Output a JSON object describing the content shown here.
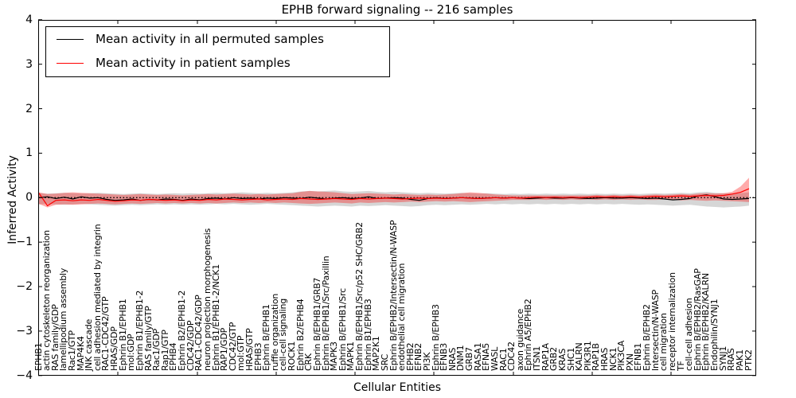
{
  "chart_data": {
    "type": "line",
    "title": "EPHB forward signaling -- 216 samples",
    "xlabel": "Cellular Entities",
    "ylabel": "Inferred Activity",
    "ylim": [
      -4,
      4
    ],
    "ytick_values": [
      4,
      3,
      2,
      1,
      0,
      -1,
      -2,
      -3,
      -4
    ],
    "ytick_labels": [
      "4",
      "3",
      "2",
      "1",
      "0",
      "−1",
      "−2",
      "−3",
      "−4"
    ],
    "grid": false,
    "legend_position": "upper left",
    "zero_line": {
      "y": 0,
      "style": "dotted",
      "color": "#000000"
    },
    "categories": [
      "EPHB1",
      "actin cytoskeleton reorganization",
      "RAS family/GDP",
      "lamellipodium assembly",
      "Rac1/GTP",
      "MAP4K4",
      "JNK cascade",
      "cell adhesion mediated by integrin",
      "RAC1-CDC42/GTP",
      "HRAS/GDP",
      "Ephrin B1/EPHB1",
      "mol:GDP",
      "Ephrin B1/EPHB1-2",
      "RAS family/GTP",
      "Rac1/GDP",
      "Rap1/GTP",
      "EPHB4",
      "Ephrin B2/EPHB1-2",
      "CDC42/GDP",
      "RAC1-CDC42/GDP",
      "neuron projection morphogenesis",
      "Ephrin B1/EPHB1-2/NCK1",
      "RAP1/GDP",
      "CDC42/GTP",
      "mol:GTP",
      "HRAS/GTP",
      "EPHB3",
      "Ephrin B/EPHB1",
      "ruffle organization",
      "cell-cell signaling",
      "ROCK1",
      "Ephrin B2/EPHB4",
      "CRK",
      "Ephrin B/EPHB1/GRB7",
      "Ephrin B/EPHB1/Src/Paxillin",
      "MAPK3",
      "Ephrin B/EPHB1/Src",
      "MAPK1",
      "Ephrin B/EPHB1/Src/p52 SHC/GRB2",
      "Ephrin B1/EPHB3",
      "MAP2K1",
      "SRC",
      "Ephrin B/EPHB2/Intersectin/N-WASP",
      "endothelial cell migration",
      "EPHB2",
      "EFNB2",
      "PI3K",
      "Ephrin B/EPHB3",
      "EFNB3",
      "NRAS",
      "DNM1",
      "GRB7",
      "RASA1",
      "EFNA5",
      "WASL",
      "RAC1",
      "CDC42",
      "axon guidance",
      "Ephrin A5/EPHB2",
      "ITSN1",
      "RAP1A",
      "GRB2",
      "KRAS",
      "SHC1",
      "KALRN",
      "PIK3R1",
      "RAP1B",
      "HRAS",
      "NCK1",
      "PIK3CA",
      "PXN",
      "EFNB1",
      "Ephrin B/EPHB2",
      "Intersectin/N-WASP",
      "cell migration",
      "receptor internalization",
      "TF",
      "cell-cell adhesion",
      "Ephrin B/EPHB2/RasGAP",
      "Ephrin B/EPHB2/KALRN",
      "Endophilin/SYNJ1",
      "SYNJ1",
      "RRAS",
      "PAK1",
      "PTK2"
    ],
    "series": [
      {
        "name": "Mean activity in all permuted samples",
        "color": "#000000",
        "band_color": "rgba(0,0,0,0.16)",
        "values": [
          0.0,
          0.02,
          -0.02,
          0.01,
          -0.03,
          0.02,
          -0.01,
          0.0,
          -0.04,
          -0.06,
          -0.05,
          -0.03,
          -0.06,
          -0.04,
          -0.05,
          -0.03,
          -0.04,
          -0.06,
          -0.03,
          -0.05,
          -0.02,
          -0.01,
          -0.03,
          0.0,
          -0.02,
          -0.01,
          -0.03,
          -0.01,
          -0.02,
          0.0,
          -0.01,
          -0.02,
          0.01,
          -0.01,
          -0.03,
          -0.01,
          0.0,
          -0.02,
          -0.01,
          0.02,
          -0.02,
          -0.01,
          0.0,
          -0.01,
          -0.04,
          -0.06,
          -0.02,
          0.0,
          -0.02,
          -0.01,
          0.0,
          -0.01,
          -0.02,
          -0.01,
          0.0,
          -0.01,
          0.0,
          -0.01,
          -0.02,
          -0.01,
          0.0,
          -0.01,
          -0.01,
          0.0,
          -0.01,
          -0.02,
          -0.01,
          0.0,
          -0.01,
          -0.01,
          0.0,
          -0.01,
          -0.02,
          -0.01,
          -0.03,
          -0.05,
          -0.04,
          -0.02,
          0.04,
          0.06,
          0.02,
          -0.03,
          -0.04,
          -0.03,
          -0.02
        ],
        "band_upper": [
          0.1,
          0.09,
          0.1,
          0.11,
          0.1,
          0.09,
          0.1,
          0.11,
          0.1,
          0.09,
          0.08,
          0.09,
          0.1,
          0.09,
          0.08,
          0.09,
          0.1,
          0.09,
          0.1,
          0.09,
          0.1,
          0.11,
          0.1,
          0.11,
          0.12,
          0.11,
          0.1,
          0.11,
          0.1,
          0.11,
          0.12,
          0.14,
          0.15,
          0.14,
          0.15,
          0.16,
          0.14,
          0.13,
          0.14,
          0.15,
          0.13,
          0.12,
          0.13,
          0.12,
          0.11,
          0.1,
          0.11,
          0.1,
          0.09,
          0.1,
          0.11,
          0.1,
          0.09,
          0.1,
          0.09,
          0.08,
          0.09,
          0.08,
          0.09,
          0.08,
          0.09,
          0.08,
          0.09,
          0.08,
          0.09,
          0.08,
          0.09,
          0.08,
          0.09,
          0.08,
          0.09,
          0.08,
          0.09,
          0.1,
          0.09,
          0.1,
          0.11,
          0.1,
          0.12,
          0.13,
          0.11,
          0.1,
          0.09,
          0.1,
          0.12
        ],
        "band_lower": [
          -0.15,
          -0.14,
          -0.15,
          -0.16,
          -0.15,
          -0.14,
          -0.15,
          -0.16,
          -0.17,
          -0.18,
          -0.17,
          -0.16,
          -0.17,
          -0.16,
          -0.15,
          -0.16,
          -0.15,
          -0.16,
          -0.15,
          -0.16,
          -0.15,
          -0.14,
          -0.15,
          -0.14,
          -0.15,
          -0.16,
          -0.15,
          -0.14,
          -0.15,
          -0.16,
          -0.17,
          -0.18,
          -0.19,
          -0.2,
          -0.19,
          -0.18,
          -0.19,
          -0.2,
          -0.18,
          -0.19,
          -0.18,
          -0.17,
          -0.18,
          -0.19,
          -0.2,
          -0.19,
          -0.17,
          -0.16,
          -0.17,
          -0.16,
          -0.15,
          -0.16,
          -0.15,
          -0.14,
          -0.15,
          -0.14,
          -0.15,
          -0.14,
          -0.15,
          -0.14,
          -0.15,
          -0.14,
          -0.15,
          -0.14,
          -0.15,
          -0.14,
          -0.15,
          -0.14,
          -0.15,
          -0.14,
          -0.15,
          -0.16,
          -0.15,
          -0.16,
          -0.17,
          -0.18,
          -0.17,
          -0.16,
          -0.18,
          -0.2,
          -0.21,
          -0.22,
          -0.21,
          -0.2,
          -0.18
        ]
      },
      {
        "name": "Mean activity in patient samples",
        "color": "#ff0000",
        "band_color": "rgba(255,0,0,0.33)",
        "values": [
          0.1,
          -0.18,
          -0.06,
          -0.05,
          -0.07,
          -0.05,
          -0.06,
          -0.04,
          -0.06,
          -0.08,
          -0.07,
          -0.05,
          -0.06,
          -0.04,
          -0.05,
          -0.06,
          -0.05,
          -0.07,
          -0.05,
          -0.06,
          -0.04,
          -0.05,
          -0.03,
          -0.04,
          -0.05,
          -0.04,
          -0.03,
          -0.05,
          -0.04,
          -0.03,
          -0.04,
          -0.02,
          -0.03,
          -0.04,
          -0.03,
          -0.02,
          -0.03,
          -0.04,
          -0.02,
          -0.03,
          -0.02,
          -0.01,
          -0.02,
          -0.03,
          -0.02,
          -0.01,
          -0.02,
          -0.01,
          -0.02,
          -0.01,
          0.0,
          -0.01,
          -0.02,
          -0.01,
          0.0,
          -0.01,
          0.0,
          -0.01,
          0.0,
          0.01,
          0.0,
          0.01,
          0.0,
          0.01,
          0.0,
          0.01,
          0.02,
          0.01,
          0.02,
          0.01,
          0.02,
          0.01,
          0.02,
          0.03,
          0.02,
          0.03,
          0.04,
          0.03,
          0.04,
          0.05,
          0.04,
          0.05,
          0.08,
          0.12,
          0.2
        ],
        "band_upper": [
          0.12,
          0.08,
          0.09,
          0.11,
          0.12,
          0.11,
          0.1,
          0.09,
          0.08,
          0.07,
          0.06,
          0.07,
          0.08,
          0.07,
          0.06,
          0.07,
          0.06,
          0.05,
          0.06,
          0.07,
          0.08,
          0.07,
          0.08,
          0.09,
          0.08,
          0.07,
          0.08,
          0.07,
          0.08,
          0.09,
          0.1,
          0.13,
          0.15,
          0.14,
          0.13,
          0.12,
          0.1,
          0.08,
          0.09,
          0.1,
          0.09,
          0.08,
          0.07,
          0.08,
          0.07,
          0.06,
          0.07,
          0.06,
          0.07,
          0.08,
          0.1,
          0.12,
          0.11,
          0.09,
          0.07,
          0.06,
          0.05,
          0.05,
          0.05,
          0.05,
          0.05,
          0.05,
          0.05,
          0.05,
          0.05,
          0.05,
          0.06,
          0.05,
          0.06,
          0.05,
          0.06,
          0.05,
          0.06,
          0.07,
          0.06,
          0.07,
          0.08,
          0.07,
          0.09,
          0.1,
          0.09,
          0.1,
          0.13,
          0.25,
          0.45
        ],
        "band_lower": [
          -0.14,
          -0.22,
          -0.16,
          -0.15,
          -0.16,
          -0.15,
          -0.14,
          -0.13,
          -0.14,
          -0.15,
          -0.14,
          -0.13,
          -0.14,
          -0.13,
          -0.12,
          -0.13,
          -0.12,
          -0.13,
          -0.12,
          -0.13,
          -0.12,
          -0.13,
          -0.12,
          -0.11,
          -0.12,
          -0.11,
          -0.12,
          -0.11,
          -0.12,
          -0.11,
          -0.12,
          -0.13,
          -0.14,
          -0.13,
          -0.12,
          -0.11,
          -0.12,
          -0.13,
          -0.11,
          -0.12,
          -0.11,
          -0.1,
          -0.11,
          -0.1,
          -0.09,
          -0.1,
          -0.09,
          -0.08,
          -0.09,
          -0.08,
          -0.09,
          -0.1,
          -0.09,
          -0.08,
          -0.07,
          -0.06,
          -0.05,
          -0.05,
          -0.05,
          -0.04,
          -0.05,
          -0.04,
          -0.05,
          -0.04,
          -0.05,
          -0.04,
          -0.05,
          -0.04,
          -0.05,
          -0.04,
          -0.05,
          -0.04,
          -0.05,
          -0.05,
          -0.04,
          -0.05,
          -0.06,
          -0.05,
          -0.06,
          -0.07,
          -0.06,
          -0.07,
          -0.08,
          -0.09,
          -0.1
        ]
      }
    ]
  }
}
